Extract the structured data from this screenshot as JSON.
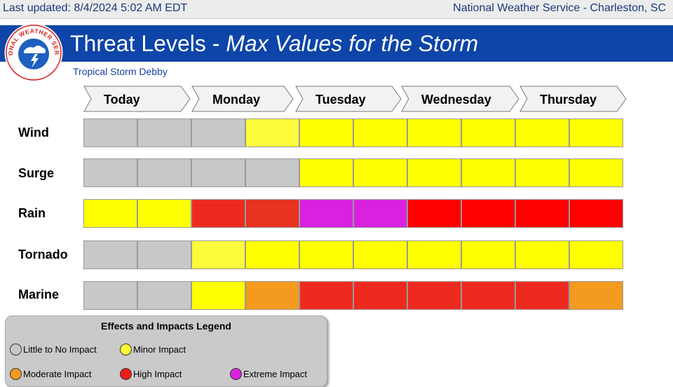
{
  "header": {
    "last_updated": "Last updated: 8/4/2024 5:02 AM EDT",
    "office": "National Weather Service - Charleston, SC"
  },
  "banner": {
    "title_plain": "Threat Levels - ",
    "title_italic": "Max Values for the Storm",
    "subtitle": "Tropical Storm Debby",
    "logo_icon": "nws-logo-icon",
    "logo_text": "NATIONAL WEATHER SERVICE"
  },
  "days": [
    "Today",
    "Monday",
    "Tuesday",
    "Wednesday",
    "Thursday"
  ],
  "threats": [
    {
      "label": "Wind",
      "cells": [
        "gray",
        "gray",
        "gray",
        "minor",
        "yellow",
        "yellow",
        "yellow",
        "yellow",
        "yellow",
        "yellow"
      ]
    },
    {
      "label": "Surge",
      "cells": [
        "gray",
        "gray",
        "gray",
        "gray",
        "yellow",
        "yellow",
        "yellow",
        "yellow",
        "yellow",
        "yellow"
      ]
    },
    {
      "label": "Rain",
      "cells": [
        "yellow",
        "yellow",
        "red",
        "redorange",
        "magenta",
        "magenta",
        "brightred",
        "brightred",
        "brightred",
        "brightred"
      ]
    },
    {
      "label": "Tornado",
      "cells": [
        "gray",
        "gray",
        "minor",
        "yellow",
        "yellow",
        "yellow",
        "yellow",
        "yellow",
        "yellow",
        "yellow"
      ]
    },
    {
      "label": "Marine",
      "cells": [
        "gray",
        "gray",
        "yellow",
        "orange",
        "red",
        "red",
        "red",
        "red",
        "red",
        "orange"
      ]
    }
  ],
  "colors": {
    "gray": "#c8c8c8",
    "minor": "#fbfb3c",
    "yellow": "#ffff00",
    "orange": "#f49a1e",
    "red": "#ee2a1f",
    "redorange": "#e8331f",
    "brightred": "#ff0000",
    "magenta": "#d822e0",
    "banner": "#0d45a8"
  },
  "legend": {
    "title": "Effects and Impacts Legend",
    "items": [
      {
        "label": "Little to No Impact",
        "color": "#c8c8c8"
      },
      {
        "label": "Minor Impact",
        "color": "#ffff33"
      },
      {
        "label": "Moderate Impact",
        "color": "#f49a1e"
      },
      {
        "label": "High Impact",
        "color": "#ee1c1c"
      },
      {
        "label": "Extreme Impact",
        "color": "#d822e0"
      }
    ]
  }
}
